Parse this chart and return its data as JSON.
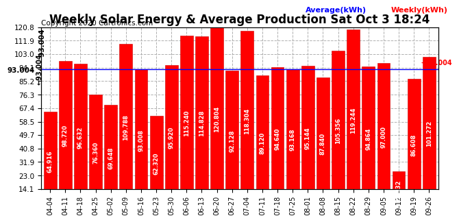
{
  "title": "Weekly Solar Energy & Average Production Sat Oct 3 18:24",
  "copyright": "Copyright 2020 Cartronics.com",
  "legend_average": "Average(kWh)",
  "legend_weekly": "Weekly(kWh)",
  "average_value": 93.004,
  "categories": [
    "04-04",
    "04-11",
    "04-18",
    "04-25",
    "05-02",
    "05-09",
    "05-16",
    "05-23",
    "05-30",
    "06-06",
    "06-13",
    "06-20",
    "06-27",
    "07-04",
    "07-11",
    "07-18",
    "07-25",
    "08-01",
    "08-08",
    "08-15",
    "08-22",
    "08-29",
    "09-05",
    "09-12",
    "09-19",
    "09-26"
  ],
  "values": [
    64.916,
    98.72,
    96.632,
    76.36,
    69.648,
    109.788,
    93.008,
    62.32,
    95.92,
    115.24,
    114.828,
    120.804,
    92.128,
    118.304,
    89.12,
    94.64,
    93.168,
    95.144,
    87.84,
    105.356,
    119.244,
    94.864,
    97.0,
    25.932,
    86.608,
    101.272
  ],
  "bar_color": "#ff0000",
  "bar_edge_color": "#cc0000",
  "avg_line_color": "#0000ff",
  "avg_label_color": "#000000",
  "avg_arrow_label_color": "#ff0000",
  "background_color": "#ffffff",
  "grid_color": "#b0b0b0",
  "title_fontsize": 12,
  "copyright_fontsize": 7.5,
  "bar_label_fontsize": 6,
  "tick_fontsize": 7.5,
  "legend_fontsize": 8,
  "ylim_min": 14.1,
  "ylim_max": 120.8,
  "yticks": [
    14.1,
    23.0,
    31.9,
    40.8,
    49.7,
    58.5,
    67.4,
    76.3,
    85.2,
    94.1,
    103.0,
    111.9,
    120.8
  ]
}
